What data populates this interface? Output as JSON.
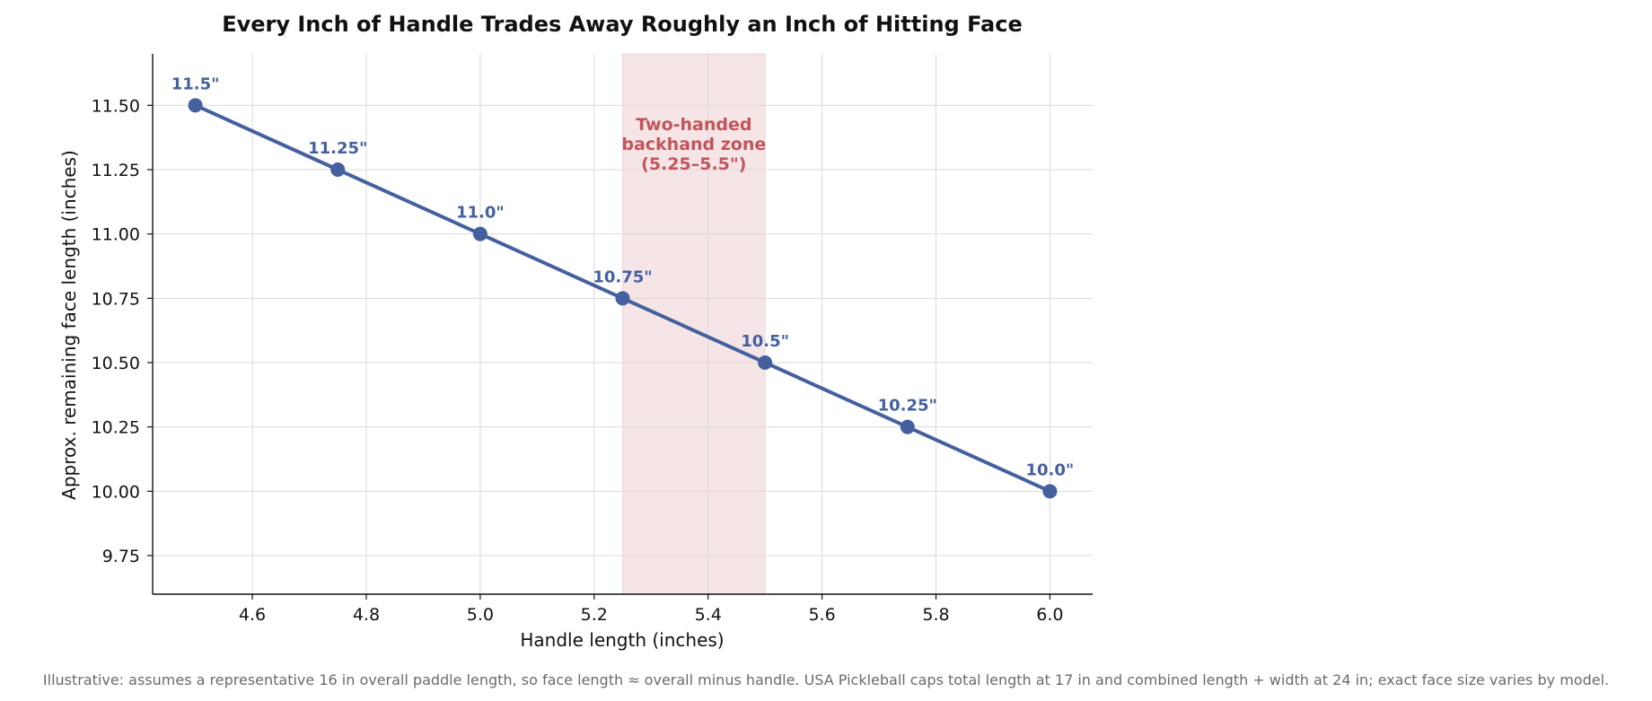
{
  "chart_data": {
    "type": "line",
    "title": "Every Inch of Handle Trades Away Roughly an Inch of Hitting Face",
    "xlabel": "Handle length (inches)",
    "ylabel": "Approx. remaining face length (inches)",
    "xlim": [
      4.425,
      6.075
    ],
    "ylim": [
      9.6,
      11.7
    ],
    "x_ticks": [
      4.6,
      4.8,
      5.0,
      5.2,
      5.4,
      5.6,
      5.8,
      6.0
    ],
    "x_tick_labels": [
      "4.6",
      "4.8",
      "5.0",
      "5.2",
      "5.4",
      "5.6",
      "5.8",
      "6.0"
    ],
    "y_ticks": [
      9.75,
      10.0,
      10.25,
      10.5,
      10.75,
      11.0,
      11.25,
      11.5
    ],
    "y_tick_labels": [
      "9.75",
      "10.00",
      "10.25",
      "10.50",
      "10.75",
      "11.00",
      "11.25",
      "11.50"
    ],
    "grid": true,
    "series": [
      {
        "color": "#44609e",
        "x": [
          4.5,
          4.75,
          5.0,
          5.25,
          5.5,
          5.75,
          6.0
        ],
        "y": [
          11.5,
          11.25,
          11.0,
          10.75,
          10.5,
          10.25,
          10.0
        ],
        "labels": [
          "11.5\"",
          "11.25\"",
          "11.0\"",
          "10.75\"",
          "10.5\"",
          "10.25\"",
          "10.0\""
        ]
      }
    ],
    "shaded_region": {
      "x_range": [
        5.25,
        5.5
      ],
      "color": "#e8c1c4",
      "label_lines": [
        "Two-handed",
        "backhand zone",
        "(5.25–5.5\")"
      ]
    },
    "footnote": "Illustrative: assumes a representative 16 in overall paddle length, so face length ≈ overall minus handle. USA Pickleball caps total length at 17 in and combined length + width at 24 in; exact face size varies by model."
  }
}
